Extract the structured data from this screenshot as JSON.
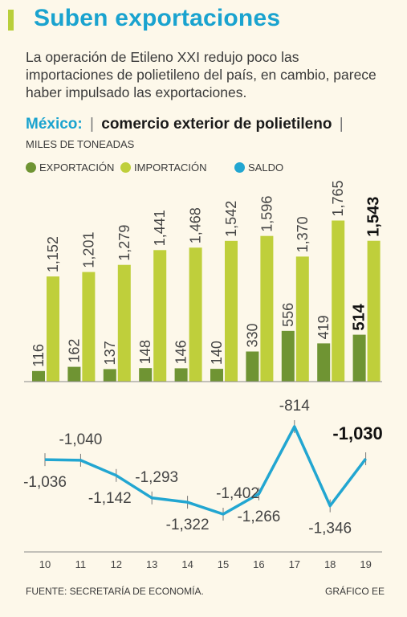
{
  "header": {
    "title": "Suben exportaciones",
    "intro": "La operación de Etileno XXI redujo poco las importaciones de polietileno del país, en cambio, parece haber impulsado las exportaciones."
  },
  "subtitle": {
    "country": "México:",
    "separator": "|",
    "topic": "comercio exterior de polietileno",
    "trailing": "|"
  },
  "units": "MILES DE TONEADAS",
  "legend": {
    "export": "EXPORTACIÓN",
    "import": "IMPORTACIÓN",
    "balance": "SALDO"
  },
  "colors": {
    "export": "#6f9433",
    "import": "#bfcf3b",
    "balance": "#22a6d1",
    "title": "#1aa3cf",
    "background": "#fdf8ea"
  },
  "chart_data": [
    {
      "type": "bar",
      "categories": [
        "10",
        "11",
        "12",
        "13",
        "14",
        "15",
        "16",
        "17",
        "18",
        "19"
      ],
      "series": [
        {
          "name": "EXPORTACIÓN",
          "values": [
            116,
            162,
            137,
            148,
            146,
            140,
            330,
            556,
            419,
            514
          ],
          "labels": [
            "116",
            "162",
            "137",
            "148",
            "146",
            "140",
            "330",
            "556",
            "419",
            "514"
          ]
        },
        {
          "name": "IMPORTACIÓN",
          "values": [
            1152,
            1201,
            1279,
            1441,
            1468,
            1542,
            1596,
            1370,
            1765,
            1543
          ],
          "labels": [
            "1,152",
            "1,201",
            "1,279",
            "1,441",
            "1,468",
            "1,542",
            "1,596",
            "1,370",
            "1,765",
            "1,543"
          ]
        }
      ],
      "ylim": [
        0,
        1900
      ],
      "highlight_last": true
    },
    {
      "type": "line",
      "categories": [
        "10",
        "11",
        "12",
        "13",
        "14",
        "15",
        "16",
        "17",
        "18",
        "19"
      ],
      "series": [
        {
          "name": "SALDO",
          "values": [
            -1036,
            -1040,
            -1142,
            -1293,
            -1322,
            -1402,
            -1266,
            -814,
            -1346,
            -1030
          ],
          "labels": [
            "-1,036",
            "-1,040",
            "-1,142",
            "-1,293",
            "-1,322",
            "-1,402",
            "-1,266",
            "-814",
            "-1,346",
            "-1,030"
          ]
        }
      ],
      "ylim": [
        -1420,
        -800
      ],
      "highlight_last": true
    }
  ],
  "footer": {
    "source": "FUENTE: SECRETARÍA DE ECONOMÍA.",
    "credit": "GRÁFICO EE"
  }
}
